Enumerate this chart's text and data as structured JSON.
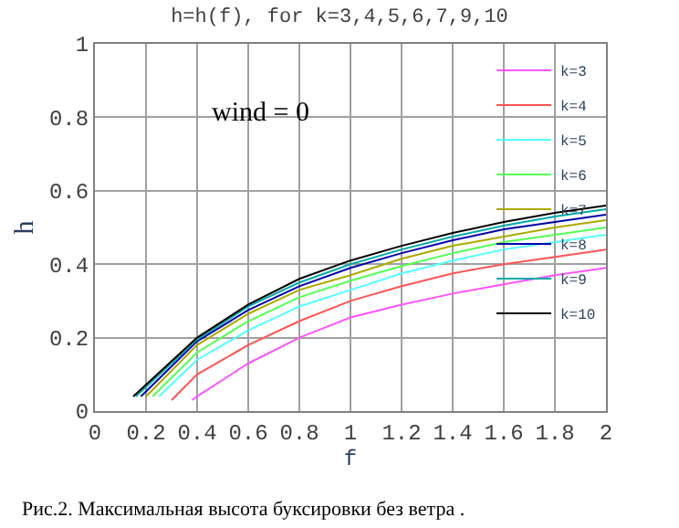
{
  "chart_data": {
    "type": "line",
    "title": "h=h(f), for k=3,4,5,6,7,9,10",
    "xlabel": "f",
    "ylabel": "h",
    "annotations": [
      "wind = 0",
      "Рис.2. Максимальная высота буксировки без ветра ."
    ],
    "xlim": [
      0,
      2
    ],
    "ylim": [
      0,
      1
    ],
    "xticks": [
      0,
      0.2,
      0.4,
      0.6,
      0.8,
      1,
      1.2,
      1.4,
      1.6,
      1.8,
      2
    ],
    "yticks": [
      0,
      0.2,
      0.4,
      0.6,
      0.8,
      1
    ],
    "grid": true,
    "legend": "top right",
    "marker": "none",
    "line_style": "solid",
    "series": [
      {
        "name": "k=3",
        "color": "#ff55ff",
        "x": [
          0.38,
          0.4,
          0.6,
          0.8,
          1,
          1.2,
          1.4,
          1.6,
          1.8,
          2
        ],
        "values": [
          0.03,
          0.04,
          0.13,
          0.2,
          0.255,
          0.29,
          0.32,
          0.345,
          0.37,
          0.39
        ]
      },
      {
        "name": "k=4",
        "color": "#ff5555",
        "x": [
          0.3,
          0.4,
          0.6,
          0.8,
          1,
          1.2,
          1.4,
          1.6,
          1.8,
          2
        ],
        "values": [
          0.03,
          0.1,
          0.18,
          0.245,
          0.3,
          0.34,
          0.375,
          0.4,
          0.42,
          0.44
        ]
      },
      {
        "name": "k=5",
        "color": "#55ffff",
        "x": [
          0.25,
          0.4,
          0.6,
          0.8,
          1,
          1.2,
          1.4,
          1.6,
          1.8,
          2
        ],
        "values": [
          0.04,
          0.14,
          0.22,
          0.285,
          0.33,
          0.375,
          0.41,
          0.44,
          0.46,
          0.48
        ]
      },
      {
        "name": "k=6",
        "color": "#55ff55",
        "x": [
          0.225,
          0.4,
          0.6,
          0.8,
          1,
          1.2,
          1.4,
          1.6,
          1.8,
          2
        ],
        "values": [
          0.04,
          0.16,
          0.245,
          0.31,
          0.355,
          0.395,
          0.43,
          0.46,
          0.48,
          0.5
        ]
      },
      {
        "name": "k=7",
        "color": "#aaaa00",
        "x": [
          0.2,
          0.4,
          0.6,
          0.8,
          1,
          1.2,
          1.4,
          1.6,
          1.8,
          2
        ],
        "values": [
          0.04,
          0.18,
          0.265,
          0.33,
          0.37,
          0.415,
          0.45,
          0.475,
          0.5,
          0.52
        ]
      },
      {
        "name": "k=8",
        "color": "#0000aa",
        "x": [
          0.18,
          0.4,
          0.6,
          0.8,
          1,
          1.2,
          1.4,
          1.6,
          1.8,
          2
        ],
        "values": [
          0.04,
          0.19,
          0.275,
          0.34,
          0.39,
          0.43,
          0.465,
          0.495,
          0.515,
          0.535
        ]
      },
      {
        "name": "k=9",
        "color": "#00aaaa",
        "x": [
          0.16,
          0.4,
          0.6,
          0.8,
          1,
          1.2,
          1.4,
          1.6,
          1.8,
          2
        ],
        "values": [
          0.04,
          0.195,
          0.285,
          0.35,
          0.4,
          0.44,
          0.475,
          0.505,
          0.53,
          0.55
        ]
      },
      {
        "name": "k=10",
        "color": "#000000",
        "x": [
          0.15,
          0.4,
          0.6,
          0.8,
          1,
          1.2,
          1.4,
          1.6,
          1.8,
          2
        ],
        "values": [
          0.04,
          0.2,
          0.29,
          0.36,
          0.41,
          0.45,
          0.485,
          0.515,
          0.54,
          0.56
        ]
      }
    ]
  }
}
